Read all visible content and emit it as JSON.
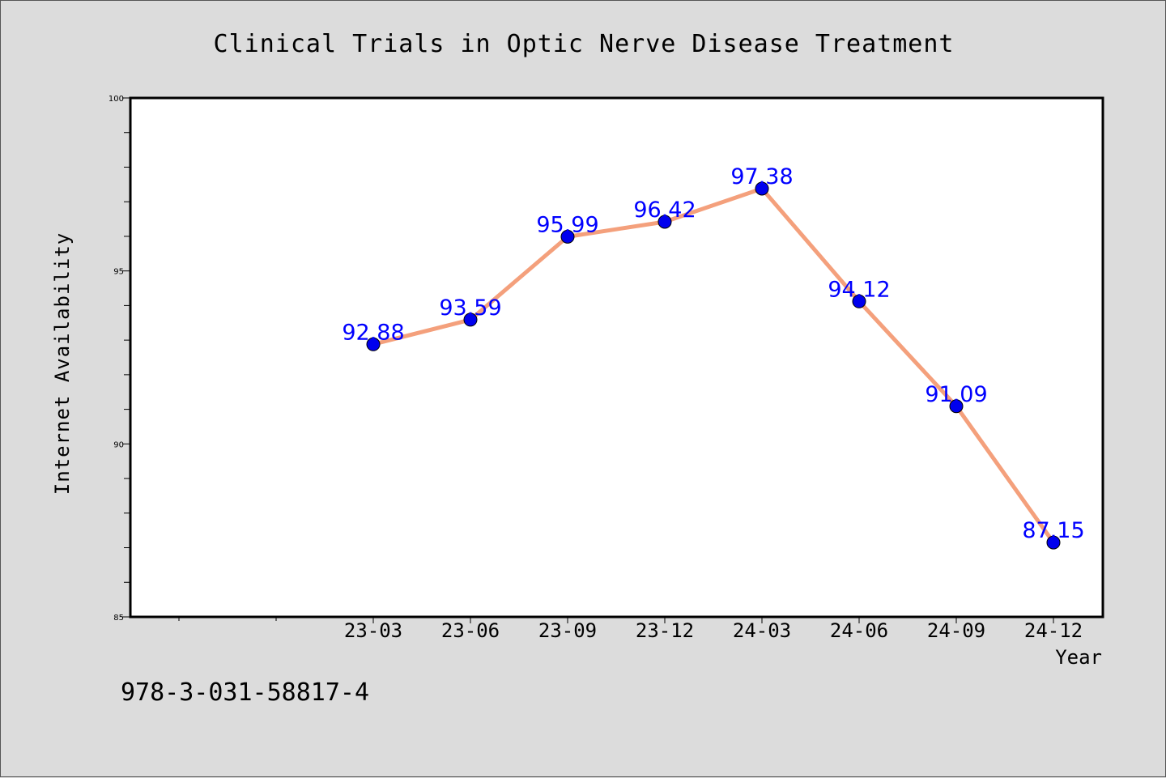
{
  "chart_data": {
    "type": "line",
    "title": "Clinical Trials in Optic Nerve Disease Treatment",
    "xlabel": "Year",
    "ylabel": "Internet Availability",
    "categories": [
      "23-03",
      "23-06",
      "23-09",
      "23-12",
      "24-03",
      "24-06",
      "24-09",
      "24-12"
    ],
    "series": [
      {
        "values": [
          92.88,
          93.59,
          95.99,
          96.42,
          97.38,
          94.12,
          91.09,
          87.15
        ]
      }
    ],
    "data_labels": [
      "92.88",
      "93.59",
      "95.99",
      "96.42",
      "97.38",
      "94.12",
      "91.09",
      "87.15"
    ],
    "ylim": [
      85,
      100
    ],
    "yticks": [
      "85",
      "90",
      "95",
      "100"
    ],
    "grid": false,
    "line_color": "#f4a07c",
    "marker_color": "#0000ee",
    "label_color": "#0000ff"
  },
  "footer": {
    "isbn": "978-3-031-58817-4"
  }
}
